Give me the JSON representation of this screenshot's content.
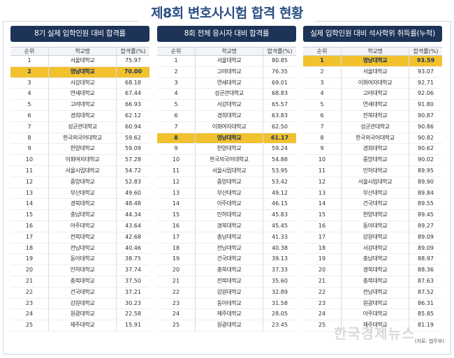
{
  "page_title": "제8회 변호사시험 합격 현황",
  "tables": [
    {
      "title": "8기 실제 입학인원 대비 합격률",
      "col_headers": [
        "순위",
        "학교명",
        "합격률(%)"
      ],
      "highlight_index": 1,
      "rows": [
        {
          "rank": "1",
          "school": "서울대학교",
          "value": "75.97"
        },
        {
          "rank": "2",
          "school": "영남대학교",
          "value": "70.00"
        },
        {
          "rank": "3",
          "school": "서강대학교",
          "value": "68.18"
        },
        {
          "rank": "4",
          "school": "연세대학교",
          "value": "67.44"
        },
        {
          "rank": "5",
          "school": "고려대학교",
          "value": "66.93"
        },
        {
          "rank": "6",
          "school": "경희대학교",
          "value": "62.12"
        },
        {
          "rank": "7",
          "school": "성균관대학교",
          "value": "60.94"
        },
        {
          "rank": "8",
          "school": "한국외국어대학교",
          "value": "59.62"
        },
        {
          "rank": "9",
          "school": "한양대학교",
          "value": "59.09"
        },
        {
          "rank": "10",
          "school": "이화여자대학교",
          "value": "57.28"
        },
        {
          "rank": "11",
          "school": "서울시립대학교",
          "value": "54.72"
        },
        {
          "rank": "12",
          "school": "중앙대학교",
          "value": "52.83"
        },
        {
          "rank": "13",
          "school": "부산대학교",
          "value": "49.60"
        },
        {
          "rank": "14",
          "school": "경북대학교",
          "value": "48.48"
        },
        {
          "rank": "15",
          "school": "충남대학교",
          "value": "44.34"
        },
        {
          "rank": "16",
          "school": "아주대학교",
          "value": "43.64"
        },
        {
          "rank": "17",
          "school": "전북대학교",
          "value": "42.68"
        },
        {
          "rank": "18",
          "school": "전남대학교",
          "value": "40.46"
        },
        {
          "rank": "19",
          "school": "동아대학교",
          "value": "38.75"
        },
        {
          "rank": "20",
          "school": "인하대학교",
          "value": "37.74"
        },
        {
          "rank": "21",
          "school": "충북대학교",
          "value": "37.50"
        },
        {
          "rank": "22",
          "school": "건국대학교",
          "value": "37.21"
        },
        {
          "rank": "23",
          "school": "강원대학교",
          "value": "30.23"
        },
        {
          "rank": "24",
          "school": "원광대학교",
          "value": "22.58"
        },
        {
          "rank": "25",
          "school": "제주대학교",
          "value": "15.91"
        }
      ]
    },
    {
      "title": "8회 전체 응시자 대비 합격률",
      "col_headers": [
        "순위",
        "학교명",
        "합격률(%)"
      ],
      "highlight_index": 7,
      "rows": [
        {
          "rank": "1",
          "school": "서울대학교",
          "value": "80.85"
        },
        {
          "rank": "2",
          "school": "고려대학교",
          "value": "76.35"
        },
        {
          "rank": "3",
          "school": "연세대학교",
          "value": "69.01"
        },
        {
          "rank": "4",
          "school": "성균관대학교",
          "value": "68.83"
        },
        {
          "rank": "5",
          "school": "서강대학교",
          "value": "65.57"
        },
        {
          "rank": "6",
          "school": "경희대학교",
          "value": "63.83"
        },
        {
          "rank": "7",
          "school": "이화여자대학교",
          "value": "62.50"
        },
        {
          "rank": "8",
          "school": "영남대학교",
          "value": "61.17"
        },
        {
          "rank": "9",
          "school": "한양대학교",
          "value": "59.24"
        },
        {
          "rank": "10",
          "school": "한국외국어대학교",
          "value": "54.88"
        },
        {
          "rank": "11",
          "school": "서울시립대학교",
          "value": "53.95"
        },
        {
          "rank": "12",
          "school": "중앙대학교",
          "value": "53.42"
        },
        {
          "rank": "13",
          "school": "부산대학교",
          "value": "49.12"
        },
        {
          "rank": "14",
          "school": "아주대학교",
          "value": "46.15"
        },
        {
          "rank": "15",
          "school": "인하대학교",
          "value": "45.83"
        },
        {
          "rank": "16",
          "school": "경북대학교",
          "value": "45.45"
        },
        {
          "rank": "17",
          "school": "충남대학교",
          "value": "41.33"
        },
        {
          "rank": "18",
          "school": "전남대학교",
          "value": "40.38"
        },
        {
          "rank": "19",
          "school": "건국대학교",
          "value": "39.13"
        },
        {
          "rank": "20",
          "school": "충북대학교",
          "value": "37.33"
        },
        {
          "rank": "21",
          "school": "전북대학교",
          "value": "35.60"
        },
        {
          "rank": "22",
          "school": "강원대학교",
          "value": "32.89"
        },
        {
          "rank": "23",
          "school": "동아대학교",
          "value": "31.58"
        },
        {
          "rank": "24",
          "school": "제주대학교",
          "value": "28.05"
        },
        {
          "rank": "25",
          "school": "원광대학교",
          "value": "23.45"
        }
      ]
    },
    {
      "title": "실제 입학인원 대비 석사학위 취득률(누적)",
      "col_headers": [
        "순위",
        "학교명",
        "합격률(%)"
      ],
      "highlight_index": 0,
      "rows": [
        {
          "rank": "1",
          "school": "영남대학교",
          "value": "93.59"
        },
        {
          "rank": "2",
          "school": "서울대학교",
          "value": "93.07"
        },
        {
          "rank": "3",
          "school": "이화여자대학교",
          "value": "92.71"
        },
        {
          "rank": "4",
          "school": "고려대학교",
          "value": "92.06"
        },
        {
          "rank": "5",
          "school": "연세대학교",
          "value": "91.80"
        },
        {
          "rank": "6",
          "school": "전북대학교",
          "value": "90.87"
        },
        {
          "rank": "7",
          "school": "성균관대학교",
          "value": "90.86"
        },
        {
          "rank": "8",
          "school": "한국외국어대학교",
          "value": "90.82"
        },
        {
          "rank": "9",
          "school": "경희대학교",
          "value": "90.62"
        },
        {
          "rank": "10",
          "school": "중앙대학교",
          "value": "90.02"
        },
        {
          "rank": "11",
          "school": "인하대학교",
          "value": "89.95"
        },
        {
          "rank": "12",
          "school": "서울시립대학교",
          "value": "89.90"
        },
        {
          "rank": "13",
          "school": "부산대학교",
          "value": "89.84"
        },
        {
          "rank": "14",
          "school": "건국대학교",
          "value": "89.55"
        },
        {
          "rank": "15",
          "school": "한양대학교",
          "value": "89.45"
        },
        {
          "rank": "16",
          "school": "동아대학교",
          "value": "89.27"
        },
        {
          "rank": "17",
          "school": "강원대학교",
          "value": "89.09"
        },
        {
          "rank": "18",
          "school": "서강대학교",
          "value": "89.09"
        },
        {
          "rank": "19",
          "school": "충남대학교",
          "value": "88.97"
        },
        {
          "rank": "20",
          "school": "경북대학교",
          "value": "88.36"
        },
        {
          "rank": "21",
          "school": "충북대학교",
          "value": "87.63"
        },
        {
          "rank": "22",
          "school": "전남대학교",
          "value": "87.52"
        },
        {
          "rank": "23",
          "school": "원광대학교",
          "value": "86.31"
        },
        {
          "rank": "24",
          "school": "아주대학교",
          "value": "85.85"
        },
        {
          "rank": "25",
          "school": "제주대학교",
          "value": "81.19"
        }
      ]
    }
  ],
  "source_note": "(자료: 법무부)",
  "watermark": "한국경제뉴스",
  "colors": {
    "header_bg": "#1d3357",
    "highlight": "#f2c12e",
    "title": "#2b4f86"
  }
}
